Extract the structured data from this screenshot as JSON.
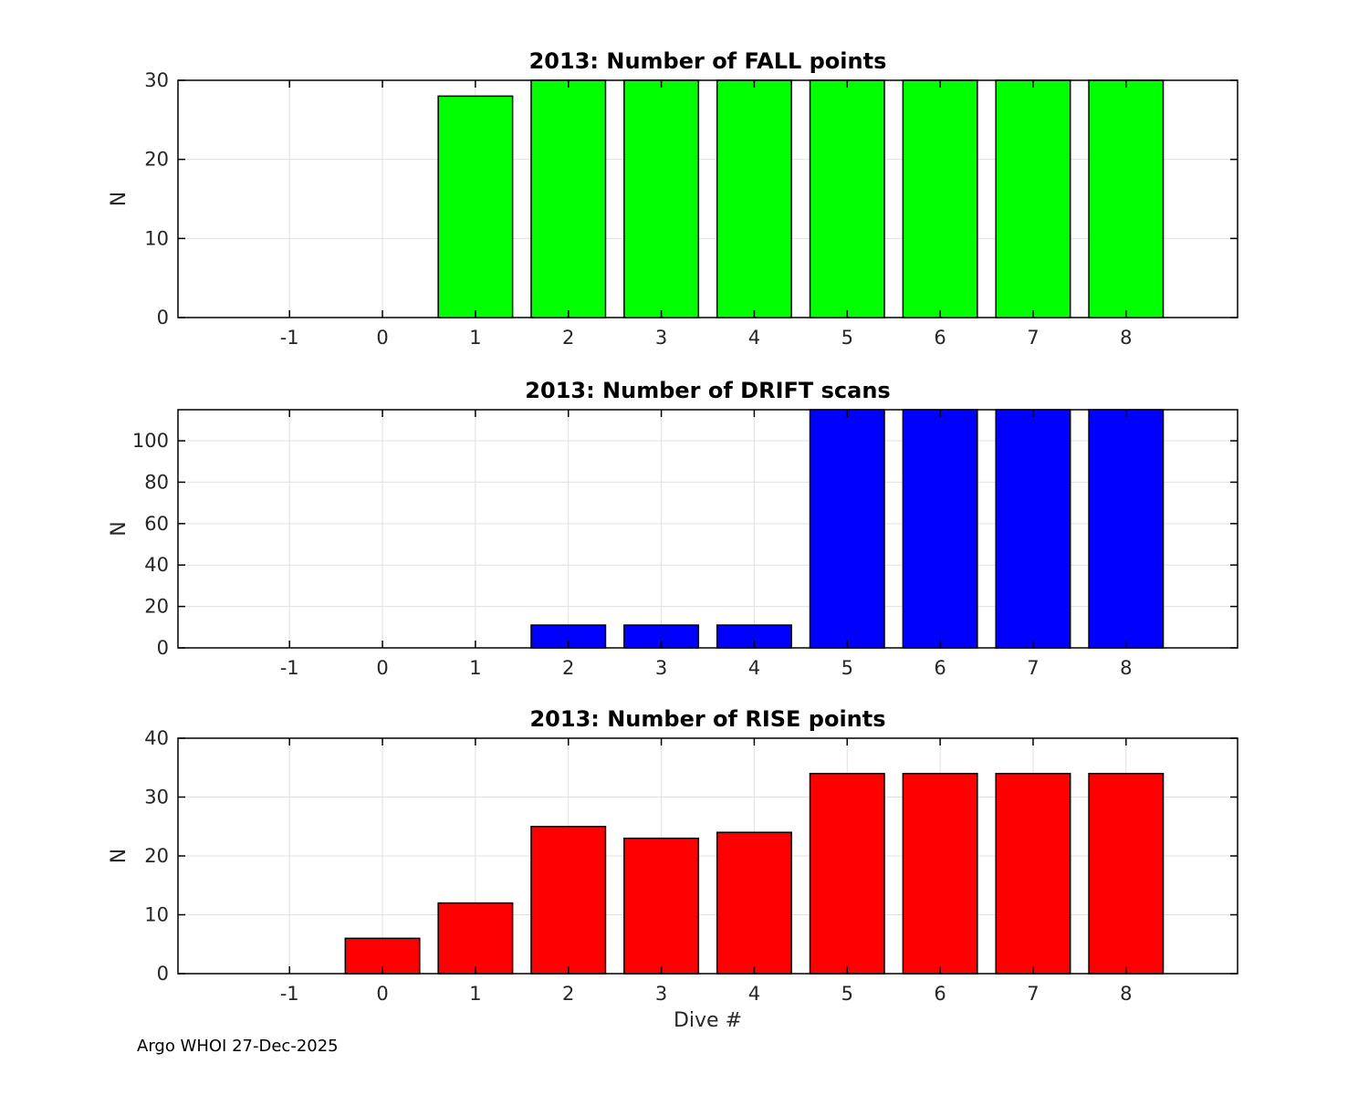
{
  "footer": {
    "text": "Argo WHOI 27-Dec-2025"
  },
  "style": {
    "axis_color": "#000000",
    "grid_color": "#e0e0e0",
    "tick_label_color": "#262626",
    "background": "#ffffff"
  },
  "chart_data": [
    {
      "type": "bar",
      "title": "2013: Number of FALL points",
      "xlabel": "",
      "ylabel": "N",
      "bar_color": "#00ff00",
      "bar_edge_color": "#000000",
      "bar_width": 0.8,
      "x": [
        1,
        2,
        3,
        4,
        5,
        6,
        7,
        8
      ],
      "values": [
        28,
        30,
        30,
        30,
        30,
        30,
        30,
        30
      ],
      "xlim": [
        -2.2,
        9.2
      ],
      "ylim": [
        0,
        30
      ],
      "xticks": [
        -1,
        0,
        1,
        2,
        3,
        4,
        5,
        6,
        7,
        8
      ],
      "yticks": [
        0,
        10,
        20,
        30
      ],
      "grid": true,
      "clipped_at_top": false
    },
    {
      "type": "bar",
      "title": "2013: Number of DRIFT scans",
      "xlabel": "",
      "ylabel": "N",
      "bar_color": "#0000ff",
      "bar_edge_color": "#000000",
      "bar_width": 0.8,
      "x": [
        2,
        3,
        4,
        5,
        6,
        7,
        8
      ],
      "values": [
        11,
        11,
        11,
        115,
        115,
        115,
        115
      ],
      "xlim": [
        -2.2,
        9.2
      ],
      "ylim": [
        0,
        115
      ],
      "xticks": [
        -1,
        0,
        1,
        2,
        3,
        4,
        5,
        6,
        7,
        8
      ],
      "yticks": [
        0,
        20,
        40,
        60,
        80,
        100
      ],
      "grid": true,
      "clipped_at_top": true
    },
    {
      "type": "bar",
      "title": "2013: Number of RISE points",
      "xlabel": "Dive #",
      "ylabel": "N",
      "bar_color": "#ff0000",
      "bar_edge_color": "#000000",
      "bar_width": 0.8,
      "x": [
        0,
        1,
        2,
        3,
        4,
        5,
        6,
        7,
        8
      ],
      "values": [
        6,
        12,
        25,
        23,
        24,
        34,
        34,
        34,
        34
      ],
      "xlim": [
        -2.2,
        9.2
      ],
      "ylim": [
        0,
        40
      ],
      "xticks": [
        -1,
        0,
        1,
        2,
        3,
        4,
        5,
        6,
        7,
        8
      ],
      "yticks": [
        0,
        10,
        20,
        30,
        40
      ],
      "grid": true,
      "clipped_at_top": false
    }
  ]
}
